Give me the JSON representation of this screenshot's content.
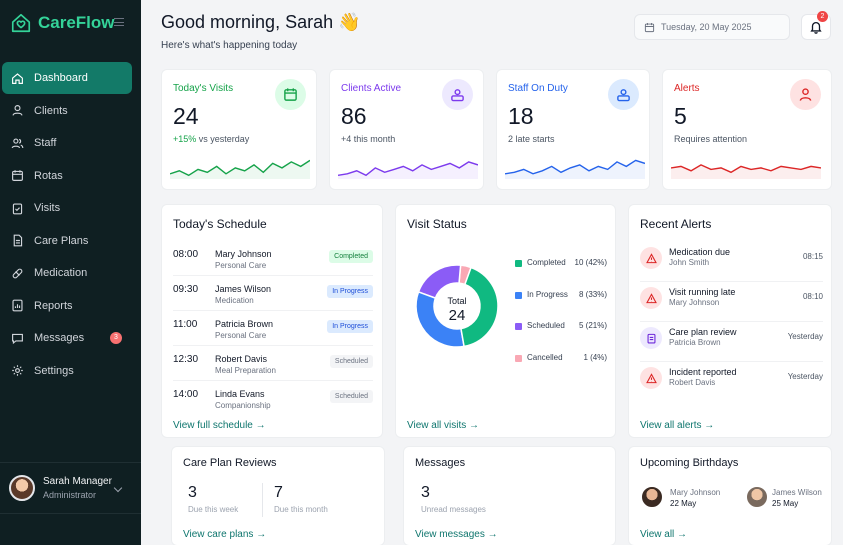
{
  "app": {
    "name": "CareFlow"
  },
  "sidebar": {
    "items": [
      {
        "label": "Dashboard",
        "icon": "home-icon"
      },
      {
        "label": "Clients",
        "icon": "user-icon"
      },
      {
        "label": "Staff",
        "icon": "users-icon"
      },
      {
        "label": "Rotas",
        "icon": "calendar-icon"
      },
      {
        "label": "Visits",
        "icon": "clipboard-check-icon"
      },
      {
        "label": "Care Plans",
        "icon": "file-icon"
      },
      {
        "label": "Medication",
        "icon": "pill-icon"
      },
      {
        "label": "Reports",
        "icon": "report-icon"
      },
      {
        "label": "Messages",
        "icon": "message-icon",
        "badge": "3"
      },
      {
        "label": "Settings",
        "icon": "gear-icon"
      }
    ],
    "user": {
      "name": "Sarah Manager",
      "role": "Administrator"
    }
  },
  "header": {
    "greeting": "Good morning, Sarah 👋",
    "subtitle": "Here's what's happening today",
    "date": "Tuesday, 20 May 2025",
    "notifications": "2"
  },
  "stats": [
    {
      "label": "Today's Visits",
      "value": "24",
      "note": "+15% vs yesterday",
      "color": "#16a34a",
      "icon": "calendar-icon",
      "spark": [
        14,
        12,
        15,
        11,
        13,
        9,
        14,
        10,
        12,
        8,
        13,
        7,
        10,
        6,
        9,
        5
      ]
    },
    {
      "label": "Clients Active",
      "value": "86",
      "note": "+4 this month",
      "color": "#7c3aed",
      "icon": "user-card-icon",
      "spark": [
        15,
        14,
        12,
        15,
        10,
        13,
        11,
        9,
        12,
        8,
        11,
        9,
        7,
        10,
        6,
        8
      ]
    },
    {
      "label": "Staff On Duty",
      "value": "18",
      "note": "2 late starts",
      "color": "#2563eb",
      "icon": "staff-card-icon",
      "spark": [
        14,
        13,
        11,
        14,
        12,
        9,
        13,
        10,
        8,
        12,
        9,
        11,
        6,
        9,
        5,
        7
      ]
    },
    {
      "label": "Alerts",
      "value": "5",
      "note": "Requires attention",
      "color": "#dc2626",
      "icon": "user-alert-icon",
      "spark": [
        10,
        9,
        12,
        8,
        11,
        10,
        13,
        9,
        11,
        10,
        12,
        9,
        10,
        11,
        9,
        10
      ]
    }
  ],
  "schedule": {
    "title": "Today's Schedule",
    "rows": [
      {
        "time": "08:00",
        "name": "Mary Johnson",
        "type": "Personal Care",
        "status": "Completed"
      },
      {
        "time": "09:30",
        "name": "James Wilson",
        "type": "Medication",
        "status": "In Progress"
      },
      {
        "time": "11:00",
        "name": "Patricia Brown",
        "type": "Personal Care",
        "status": "In Progress"
      },
      {
        "time": "12:30",
        "name": "Robert Davis",
        "type": "Meal Preparation",
        "status": "Scheduled"
      },
      {
        "time": "14:00",
        "name": "Linda Evans",
        "type": "Companionship",
        "status": "Scheduled"
      }
    ],
    "link": "View full schedule →"
  },
  "visit_status": {
    "title": "Visit Status",
    "total_label": "Total",
    "total": "24",
    "link": "View all visits →"
  },
  "chart_data": {
    "type": "pie",
    "categories": [
      "Completed",
      "In Progress",
      "Scheduled",
      "Cancelled"
    ],
    "values": [
      10,
      8,
      5,
      1
    ],
    "labels": [
      "10 (42%)",
      "8 (33%)",
      "5 (21%)",
      "1 (4%)"
    ],
    "colors": [
      "#10b981",
      "#3b82f6",
      "#8b5cf6",
      "#f9a8b4"
    ]
  },
  "alerts": {
    "title": "Recent Alerts",
    "rows": [
      {
        "title": "Medication due",
        "sub": "John Smith",
        "time": "08:15",
        "icon": "warning-icon"
      },
      {
        "title": "Visit running late",
        "sub": "Mary Johnson",
        "time": "08:10",
        "icon": "warning-icon"
      },
      {
        "title": "Care plan review",
        "sub": "Patricia Brown",
        "time": "Yesterday",
        "icon": "document-icon"
      },
      {
        "title": "Incident reported",
        "sub": "Robert Davis",
        "time": "Yesterday",
        "icon": "warning-icon"
      }
    ],
    "link": "View all alerts →"
  },
  "care_plan_reviews": {
    "title": "Care Plan Reviews",
    "a_value": "3",
    "a_label": "Due this week",
    "b_value": "7",
    "b_label": "Due this month",
    "link": "View care plans →"
  },
  "messages": {
    "title": "Messages",
    "value": "3",
    "label": "Unread messages",
    "link": "View messages →"
  },
  "birthdays": {
    "title": "Upcoming Birthdays",
    "people": [
      {
        "name": "Mary Johnson",
        "date": "22 May"
      },
      {
        "name": "James Wilson",
        "date": "25 May"
      }
    ],
    "link": "View all →"
  }
}
